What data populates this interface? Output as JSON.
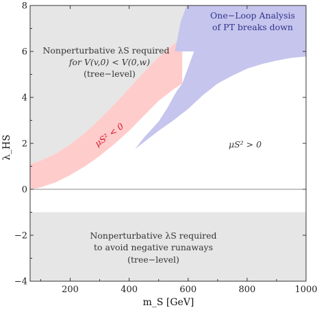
{
  "chart_data": {
    "type": "area",
    "xlabel": "m_S [GeV]",
    "ylabel": "λ_HS",
    "xlim": [
      64,
      1000
    ],
    "ylim": [
      -4,
      8
    ],
    "x_ticks": [
      "200",
      "400",
      "600",
      "800",
      "1000"
    ],
    "y_ticks": [
      "−4",
      "−2",
      "0",
      "2",
      "4",
      "6",
      "8"
    ],
    "grid": false,
    "series": [
      {
        "name": "Nonperturbative λS required for V(v,0) < V(0,w) (tree-level)",
        "color": "#e6e6e6",
        "lower": [
          [
            64,
            1.1
          ],
          [
            100,
            1.25
          ],
          [
            150,
            1.55
          ],
          [
            200,
            1.95
          ],
          [
            250,
            2.45
          ],
          [
            300,
            3.05
          ],
          [
            350,
            3.7
          ],
          [
            400,
            4.4
          ],
          [
            450,
            5.1
          ],
          [
            500,
            5.75
          ],
          [
            550,
            6.3
          ],
          [
            580,
            6.6
          ],
          [
            620,
            7.2
          ],
          [
            660,
            8.0
          ]
        ],
        "upper": 8
      },
      {
        "name": "μS² < 0",
        "color": "#ffcccc",
        "x": [
          64,
          100,
          150,
          200,
          250,
          300,
          350,
          400,
          450,
          500,
          550,
          580
        ],
        "upper": [
          1.1,
          1.25,
          1.55,
          1.95,
          2.45,
          3.05,
          3.7,
          4.4,
          5.1,
          5.75,
          6.3,
          6.6
        ],
        "lower": [
          0.0,
          0.08,
          0.3,
          0.62,
          1.0,
          1.45,
          1.97,
          2.55,
          3.2,
          3.85,
          4.35,
          4.6
        ]
      },
      {
        "name": "One-Loop Analysis of PT breaks down",
        "color": "#c5c5ee",
        "polygon": [
          [
            555,
            6.0
          ],
          [
            575,
            7.3
          ],
          [
            595,
            8.0
          ],
          [
            1000,
            8.0
          ],
          [
            1000,
            5.78
          ],
          [
            950,
            5.72
          ],
          [
            900,
            5.6
          ],
          [
            850,
            5.45
          ],
          [
            800,
            5.25
          ],
          [
            750,
            4.95
          ],
          [
            700,
            4.6
          ],
          [
            650,
            4.1
          ],
          [
            600,
            3.5
          ],
          [
            550,
            3.0
          ],
          [
            500,
            2.55
          ],
          [
            450,
            2.05
          ],
          [
            420,
            1.75
          ],
          [
            450,
            2.25
          ],
          [
            500,
            2.95
          ],
          [
            530,
            3.55
          ],
          [
            560,
            4.25
          ],
          [
            580,
            4.6
          ],
          [
            600,
            5.3
          ],
          [
            620,
            6.0
          ],
          [
            580,
            6.0
          ]
        ]
      },
      {
        "name": "Nonperturbative λS required to avoid negative runaways (tree-level)",
        "color": "#e6e6e6",
        "y_range": [
          -4,
          -1
        ]
      }
    ],
    "hlines": [
      {
        "y": 0,
        "color": "#888888"
      }
    ],
    "annotations": {
      "region_upper_left": [
        "Nonperturbative λS required",
        "for V(v,0) < V(0,w)",
        "(tree−level)"
      ],
      "region_upper_right": [
        "One−Loop Analysis",
        "of PT breaks down"
      ],
      "region_band": "μS² < 0",
      "region_right": "μS² > 0",
      "region_bottom": [
        "Nonperturbative λS required",
        "to avoid negative runaways",
        "(tree−level)"
      ]
    }
  }
}
